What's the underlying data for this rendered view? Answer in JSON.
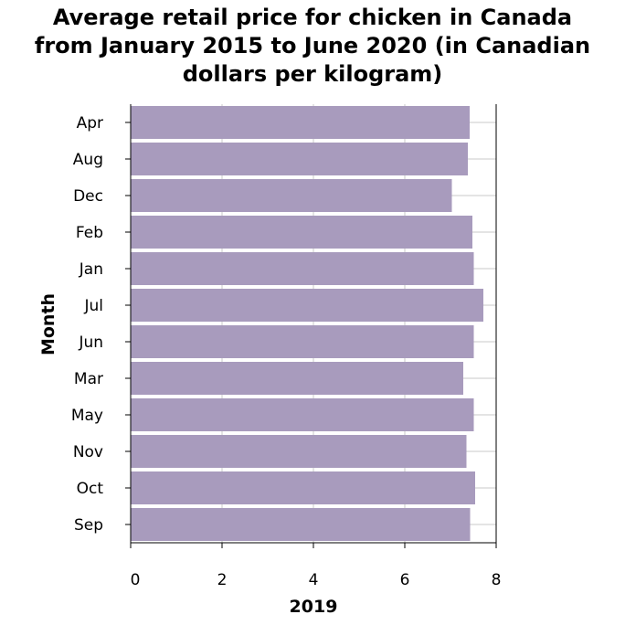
{
  "chart_data": {
    "type": "bar",
    "orientation": "horizontal",
    "title_lines": [
      "Average retail price for chicken in Canada",
      "from January 2015 to June 2020 (in Canadian",
      "dollars per kilogram)"
    ],
    "xlabel": "2019",
    "ylabel": "Month",
    "categories": [
      "Apr",
      "Aug",
      "Dec",
      "Feb",
      "Jan",
      "Jul",
      "Jun",
      "Mar",
      "May",
      "Nov",
      "Oct",
      "Sep"
    ],
    "values": [
      7.42,
      7.38,
      7.03,
      7.48,
      7.51,
      7.72,
      7.51,
      7.28,
      7.51,
      7.35,
      7.54,
      7.43
    ],
    "xlim": [
      0,
      8
    ],
    "xticks": [
      0,
      2,
      4,
      6,
      8
    ],
    "grid": true,
    "bar_color": "#a89bbd",
    "grid_color": "#c8c8c8"
  }
}
